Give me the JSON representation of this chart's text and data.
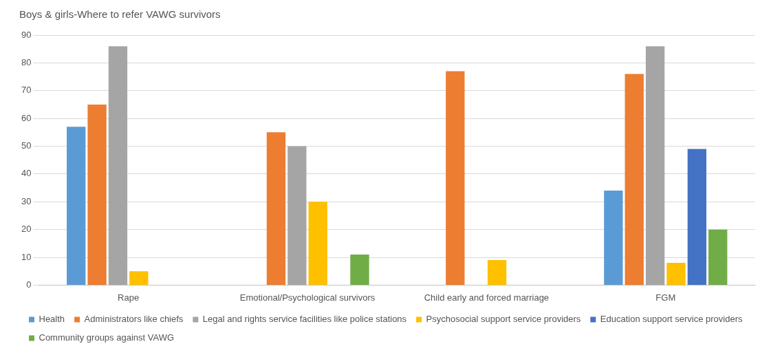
{
  "chart_data": {
    "type": "bar",
    "title": "Boys & girls-Where to refer VAWG survivors",
    "categories": [
      "Rape",
      "Emotional/Psychological survivors",
      "Child early and forced marriage",
      "FGM"
    ],
    "series": [
      {
        "name": "Health",
        "color": "#5b9bd5",
        "values": [
          57,
          null,
          null,
          34
        ]
      },
      {
        "name": "Administrators like chiefs",
        "color": "#ed7d31",
        "values": [
          65,
          55,
          77,
          76
        ]
      },
      {
        "name": "Legal and rights service facilities like police stations",
        "color": "#a5a5a5",
        "values": [
          86,
          50,
          null,
          86
        ]
      },
      {
        "name": "Psychosocial support service providers",
        "color": "#ffc000",
        "values": [
          5,
          30,
          9,
          8
        ]
      },
      {
        "name": "Education support service providers",
        "color": "#4472c4",
        "values": [
          null,
          null,
          null,
          49
        ]
      },
      {
        "name": "Community groups against VAWG",
        "color": "#70ad47",
        "values": [
          null,
          11,
          null,
          20
        ]
      }
    ],
    "ylim": [
      0,
      90
    ],
    "yticks": [
      0,
      10,
      20,
      30,
      40,
      50,
      60,
      70,
      80,
      90
    ],
    "grid": "y",
    "legend": "bottom"
  }
}
